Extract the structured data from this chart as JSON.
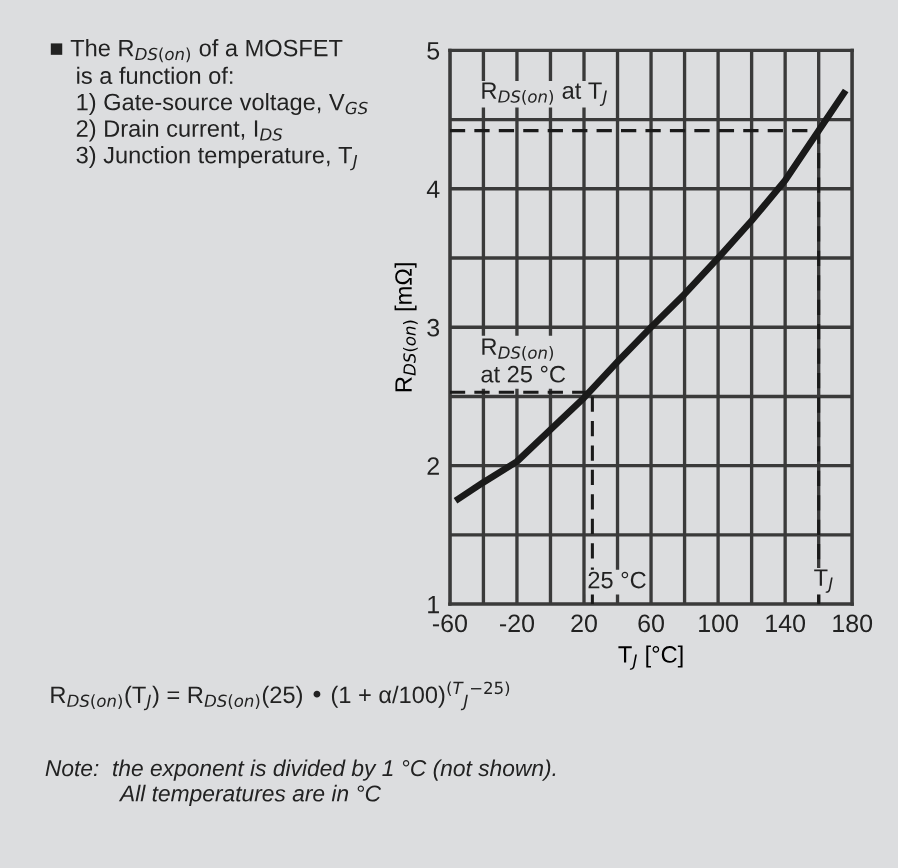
{
  "chart_data": {
    "type": "line",
    "xlabel": "T$_{J}$ [°C]",
    "ylabel": "R$_{DS(on)}$ [mΩ]",
    "xlim": [
      -60,
      180
    ],
    "ylim": [
      1,
      5
    ],
    "xticks": [
      -60,
      {
        "value": -40,
        "label": null
      },
      -20,
      {
        "value": 0,
        "label": null
      },
      20,
      {
        "value": 40,
        "label": null
      },
      60,
      {
        "value": 80,
        "label": null
      },
      100,
      {
        "value": 120,
        "label": null
      },
      140,
      {
        "value": 160,
        "label": null
      },
      180
    ],
    "yticks": [
      1,
      {
        "value": 1.5,
        "label": null
      },
      2,
      {
        "value": 2.5,
        "label": null
      },
      3,
      {
        "value": 3.5,
        "label": null
      },
      4,
      {
        "value": 4.5,
        "label": null
      },
      5
    ],
    "grid": true,
    "series": [
      {
        "color": "#1a1a1a",
        "line_style": "solid",
        "x": [
          -55,
          -40,
          -20,
          0,
          20,
          40,
          60,
          80,
          100,
          120,
          140,
          160,
          175
        ],
        "values": [
          1.76,
          1.88,
          2.03,
          2.26,
          2.49,
          2.75,
          3.0,
          3.24,
          3.5,
          3.77,
          4.06,
          4.42,
          4.69
        ]
      },
      {
        "color": "#1a1a1a",
        "line_style": "dashed",
        "x": [
          -60,
          25,
          25
        ],
        "values": [
          2.53,
          2.53,
          1
        ]
      },
      {
        "color": "#1a1a1a",
        "line_style": "dashed",
        "x": [
          -60,
          160,
          160
        ],
        "values": [
          4.42,
          4.42,
          1
        ]
      }
    ],
    "annotations": [
      "R$_{DS(on)}$ at T$_{J}$",
      "R$_{DS(on)}$\nat 25 °C",
      {
        "text": "25 °C",
        "x": 22,
        "y": 1.08
      },
      {
        "text": "T$_{J}$",
        "x": 157,
        "y": 1.08
      },
      "■ The R$_{DS(on)}$ of a MOSFET\n    is a function of:\n    1) Gate-source voltage, V$_{GS}$\n    2) Drain current, I$_{DS}$\n    3) Junction temperature, T$_{J}$",
      "R$_{DS(on)}$(T$_{J}$) = R$_{DS(on)}$(25) • (1 + α/100)$^{(T}$$_{J}$$^{−25)}$",
      "Note:  the exponent is divided by 1 °C (not shown).\n            All temperatures are in °C"
    ]
  }
}
